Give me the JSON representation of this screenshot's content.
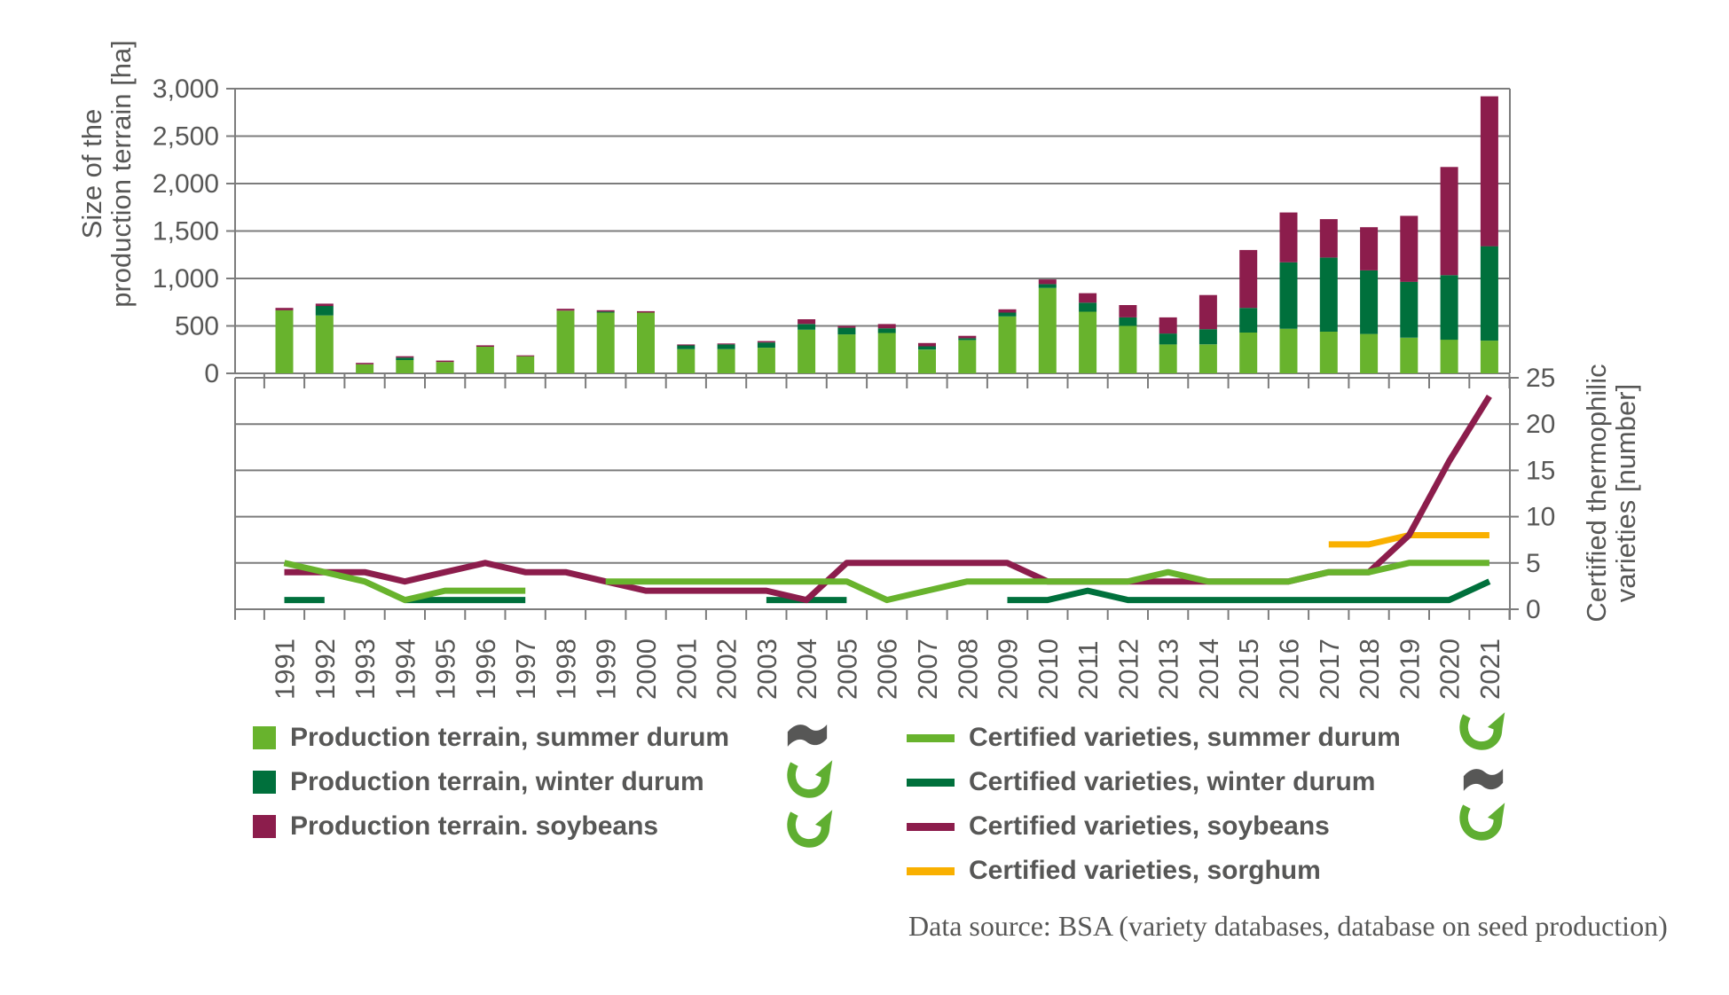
{
  "colors": {
    "summer_green": "#68B32D",
    "winter_green": "#00703C",
    "soybean_maroon": "#8C1D4C",
    "sorghum_orange": "#F9B000",
    "text_gray": "#575756",
    "grid_gray": "#7C7C7C",
    "icon_green": "#5FAE31",
    "icon_gray": "#575756"
  },
  "legend": {
    "left": [
      {
        "label": "Production terrain, summer durum",
        "swatch": "square",
        "color": "#68B32D",
        "icon": "flag-icon"
      },
      {
        "label": "Production terrain, winter durum",
        "swatch": "square",
        "color": "#00703C",
        "icon": "circular-arrow-icon"
      },
      {
        "label": "Production terrain. soybeans",
        "swatch": "square",
        "color": "#8C1D4C",
        "icon": "circular-arrow-icon"
      }
    ],
    "right": [
      {
        "label": "Certified varieties, summer durum",
        "swatch": "line",
        "color": "#68B32D",
        "icon": "circular-arrow-icon"
      },
      {
        "label": "Certified varieties, winter durum",
        "swatch": "line",
        "color": "#00703C",
        "icon": "flag-icon"
      },
      {
        "label": "Certified varieties, soybeans",
        "swatch": "line",
        "color": "#8C1D4C",
        "icon": "circular-arrow-icon"
      },
      {
        "label": "Certified varieties, sorghum",
        "swatch": "line",
        "color": "#F9B000",
        "icon": null
      }
    ]
  },
  "source_note": "Data source: BSA (variety databases, database on seed production)",
  "chart_data": [
    {
      "type": "bar",
      "stacked": true,
      "title": "",
      "xlabel": "",
      "ylabel": "Size of the production terrain [ha]",
      "ylabel_lines": [
        "Size of the",
        "production terrain [ha]"
      ],
      "ylim": [
        0,
        3000
      ],
      "yticks": [
        0,
        500,
        1000,
        1500,
        2000,
        2500,
        3000
      ],
      "ytick_labels": [
        "0",
        "500",
        "1,000",
        "1,500",
        "2,000",
        "2,500",
        "3,000"
      ],
      "grid": true,
      "legend_position": "bottom",
      "categories": [
        "1991",
        "1992",
        "1993",
        "1994",
        "1995",
        "1996",
        "1997",
        "1998",
        "1999",
        "2000",
        "2001",
        "2002",
        "2003",
        "2004",
        "2005",
        "2006",
        "2007",
        "2008",
        "2009",
        "2010",
        "2011",
        "2012",
        "2013",
        "2014",
        "2015",
        "2016",
        "2017",
        "2018",
        "2019",
        "2020",
        "2021"
      ],
      "series": [
        {
          "name": "Production terrain, summer durum",
          "color": "#68B32D",
          "values": [
            665,
            610,
            95,
            140,
            120,
            280,
            180,
            660,
            640,
            640,
            255,
            255,
            270,
            460,
            410,
            425,
            250,
            350,
            600,
            900,
            650,
            500,
            305,
            305,
            430,
            470,
            440,
            415,
            375,
            355,
            345
          ]
        },
        {
          "name": "Production terrain, winter durum",
          "color": "#00703C",
          "values": [
            0,
            100,
            0,
            25,
            0,
            0,
            0,
            0,
            10,
            0,
            40,
            50,
            55,
            60,
            70,
            50,
            35,
            20,
            40,
            40,
            95,
            90,
            115,
            160,
            260,
            700,
            780,
            670,
            590,
            680,
            995
          ]
        },
        {
          "name": "Production terrain. soybeans",
          "color": "#8C1D4C",
          "values": [
            25,
            25,
            15,
            15,
            15,
            15,
            10,
            20,
            15,
            15,
            10,
            10,
            15,
            50,
            20,
            45,
            35,
            25,
            35,
            50,
            100,
            130,
            170,
            360,
            610,
            525,
            405,
            455,
            695,
            1140,
            1580
          ]
        }
      ]
    },
    {
      "type": "line",
      "title": "",
      "xlabel": "",
      "ylabel": "Certified thermophilic varieties [number]",
      "ylabel_lines": [
        "Certified thermophilic",
        "varieties [number]"
      ],
      "ylim": [
        0,
        25
      ],
      "yticks": [
        0,
        5,
        10,
        15,
        20,
        25
      ],
      "ytick_labels": [
        "0",
        "5",
        "10",
        "15",
        "20",
        "25"
      ],
      "grid": true,
      "legend_position": "bottom",
      "categories": [
        "1991",
        "1992",
        "1993",
        "1994",
        "1995",
        "1996",
        "1997",
        "1998",
        "1999",
        "2000",
        "2001",
        "2002",
        "2003",
        "2004",
        "2005",
        "2006",
        "2007",
        "2008",
        "2009",
        "2010",
        "2011",
        "2012",
        "2013",
        "2014",
        "2015",
        "2016",
        "2017",
        "2018",
        "2019",
        "2020",
        "2021"
      ],
      "series": [
        {
          "name": "Certified varieties, summer durum",
          "color": "#68B32D",
          "values": [
            5,
            4,
            3,
            1,
            2,
            2,
            2,
            null,
            3,
            3,
            3,
            3,
            3,
            3,
            3,
            1,
            2,
            3,
            3,
            3,
            3,
            3,
            4,
            3,
            3,
            3,
            4,
            4,
            5,
            5,
            5
          ]
        },
        {
          "name": "Certified varieties, winter durum",
          "color": "#00703C",
          "values": [
            1,
            1,
            null,
            1,
            1,
            1,
            1,
            null,
            null,
            null,
            null,
            null,
            1,
            1,
            1,
            null,
            null,
            null,
            1,
            1,
            2,
            1,
            1,
            1,
            1,
            1,
            1,
            1,
            1,
            1,
            3
          ]
        },
        {
          "name": "Certified varieties, soybeans",
          "color": "#8C1D4C",
          "values": [
            4,
            4,
            4,
            3,
            4,
            5,
            4,
            4,
            3,
            2,
            2,
            2,
            2,
            1,
            5,
            5,
            5,
            5,
            5,
            3,
            3,
            3,
            3,
            3,
            3,
            3,
            4,
            4,
            8,
            16,
            23
          ]
        },
        {
          "name": "Certified varieties, sorghum",
          "color": "#F9B000",
          "values": [
            null,
            null,
            null,
            null,
            null,
            null,
            null,
            null,
            null,
            null,
            null,
            null,
            null,
            null,
            null,
            null,
            null,
            null,
            null,
            null,
            null,
            null,
            null,
            null,
            null,
            null,
            7,
            7,
            8,
            8,
            8
          ]
        }
      ]
    }
  ]
}
